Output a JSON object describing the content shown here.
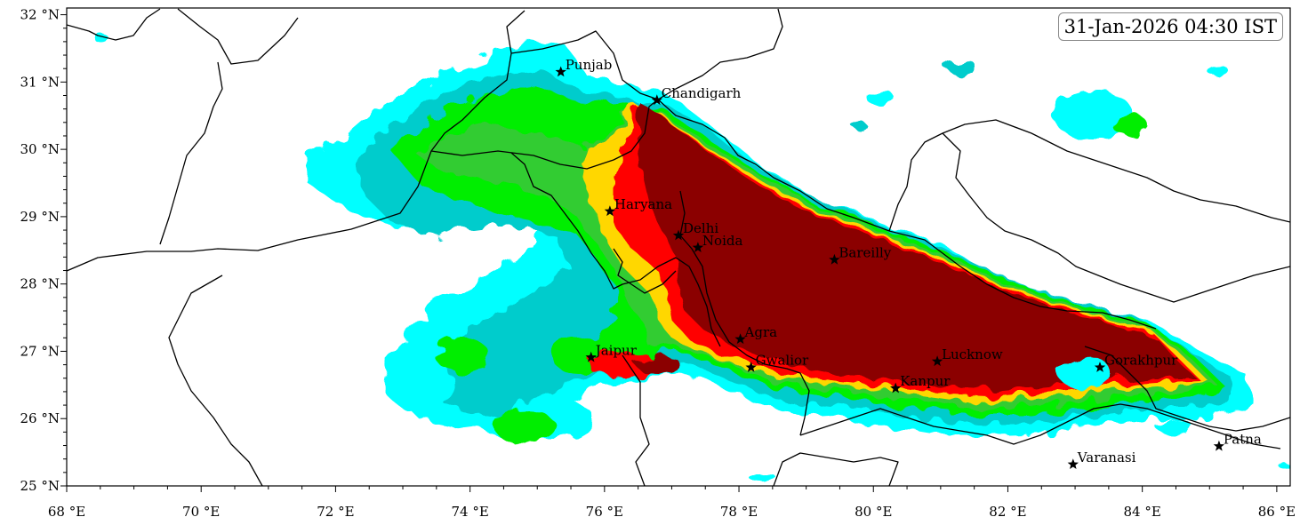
{
  "timestamp": "31-Jan-2026 04:30 IST",
  "axes": {
    "lon_ticks": [
      "68 °E",
      "70 °E",
      "72 °E",
      "74 °E",
      "76 °E",
      "78 °E",
      "80 °E",
      "82 °E",
      "84 °E",
      "86 °E"
    ],
    "lat_ticks": [
      "32 °N",
      "31 °N",
      "30 °N",
      "29 °N",
      "28 °N",
      "27 °N",
      "26 °N",
      "25 °N"
    ],
    "lon_range": [
      68,
      86.2
    ],
    "lat_range": [
      25,
      32.1
    ]
  },
  "cities": [
    {
      "name": "Punjab",
      "lon": 75.35,
      "lat": 31.15
    },
    {
      "name": "Chandigarh",
      "lon": 76.78,
      "lat": 30.73
    },
    {
      "name": "Haryana",
      "lon": 76.08,
      "lat": 29.08
    },
    {
      "name": "Delhi",
      "lon": 77.1,
      "lat": 28.72
    },
    {
      "name": "Noida",
      "lon": 77.39,
      "lat": 28.54
    },
    {
      "name": "Bareilly",
      "lon": 79.42,
      "lat": 28.36
    },
    {
      "name": "Agra",
      "lon": 78.02,
      "lat": 27.18
    },
    {
      "name": "Jaipur",
      "lon": 75.8,
      "lat": 26.91
    },
    {
      "name": "Gwalior",
      "lon": 78.18,
      "lat": 26.76
    },
    {
      "name": "Lucknow",
      "lon": 80.95,
      "lat": 26.85
    },
    {
      "name": "Gorakhpur",
      "lon": 83.37,
      "lat": 26.76
    },
    {
      "name": "Kanpur",
      "lon": 80.33,
      "lat": 26.45
    },
    {
      "name": "Varanasi",
      "lon": 82.97,
      "lat": 25.32
    },
    {
      "name": "Patna",
      "lon": 85.14,
      "lat": 25.59
    }
  ],
  "fill_levels": [
    "#00ffff",
    "#00cccc",
    "#00ee00",
    "#33cc33",
    "#ffd700",
    "#ff0000",
    "#8b0000"
  ],
  "colors": {
    "marker": "#000000",
    "boundary": "#000000"
  }
}
